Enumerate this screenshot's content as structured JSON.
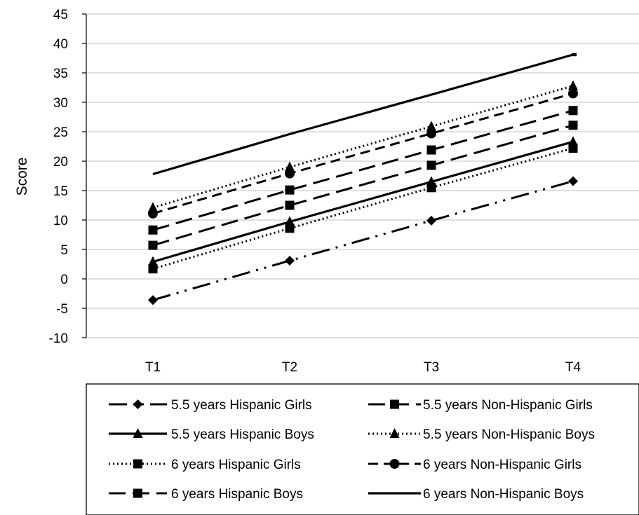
{
  "chart_data": {
    "type": "line",
    "categories": [
      "T1",
      "T2",
      "T3",
      "T4"
    ],
    "ylabel": "Score",
    "xlabel": "",
    "ylim": [
      -10,
      45
    ],
    "yticks": [
      -10,
      -5,
      0,
      5,
      10,
      15,
      20,
      25,
      30,
      35,
      40,
      45
    ],
    "grid": "horizontal",
    "legend_position": "bottom",
    "series": [
      {
        "name": "5.5 years Hispanic Girls",
        "values": [
          -3.6,
          3.1,
          9.9,
          16.6
        ],
        "marker": "diamond",
        "dash": "long-dash-dot-dot"
      },
      {
        "name": "5.5 years Non-Hispanic Girls",
        "values": [
          5.7,
          12.5,
          19.3,
          26.1
        ],
        "marker": "square",
        "dash": "long-dash"
      },
      {
        "name": "5.5 years Hispanic Boys",
        "values": [
          2.9,
          9.7,
          16.5,
          23.3
        ],
        "marker": "triangle",
        "dash": "solid"
      },
      {
        "name": "5.5 years Non-Hispanic Boys",
        "values": [
          12.1,
          19.0,
          25.9,
          32.8
        ],
        "marker": "triangle",
        "dash": "dotted"
      },
      {
        "name": "6 years Hispanic Girls",
        "values": [
          1.7,
          8.6,
          15.5,
          22.2
        ],
        "marker": "square",
        "dash": "dotted"
      },
      {
        "name": "6 years Non-Hispanic Girls",
        "values": [
          11.1,
          17.9,
          24.7,
          31.5
        ],
        "marker": "circle",
        "dash": "dashed"
      },
      {
        "name": "6 years Hispanic Boys",
        "values": [
          8.3,
          15.1,
          21.9,
          28.6
        ],
        "marker": "square",
        "dash": "long-dash"
      },
      {
        "name": "6 years Non-Hispanic Boys",
        "values": [
          17.8,
          24.6,
          31.3,
          38.1
        ],
        "marker": "none",
        "dash": "solid"
      }
    ]
  }
}
